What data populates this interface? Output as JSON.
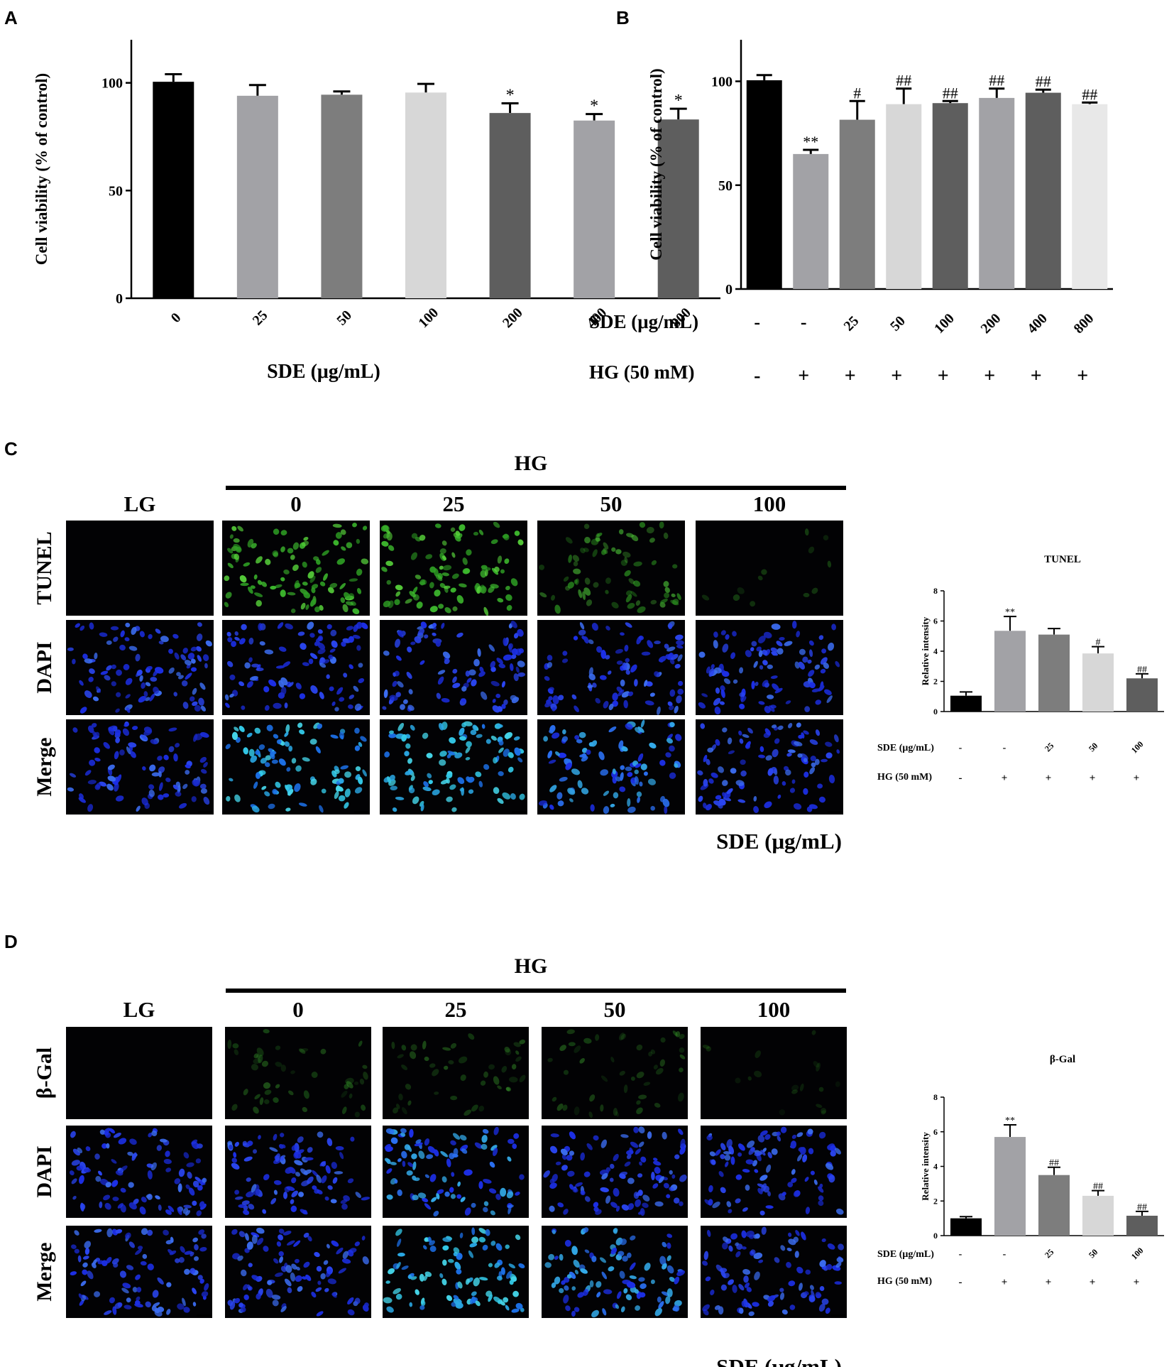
{
  "panels": {
    "A": {
      "letter": "A"
    },
    "B": {
      "letter": "B"
    },
    "C": {
      "letter": "C",
      "group_label": "HG",
      "column_labels": [
        "LG",
        "0",
        "25",
        "50",
        "100"
      ],
      "row_labels": [
        "TUNEL",
        "DAPI",
        "Merge"
      ],
      "footer_label": "SDE (μg/mL)"
    },
    "D": {
      "letter": "D",
      "group_label": "HG",
      "column_labels": [
        "LG",
        "0",
        "25",
        "50",
        "100"
      ],
      "row_labels": [
        "β-Gal",
        "DAPI",
        "Merge"
      ],
      "footer_label": "SDE (μg/mL)"
    }
  },
  "colors": {
    "bar_black": "#000000",
    "bar_mid_gray": "#a2a2a6",
    "bar_gray": "#7d7d7d",
    "bar_light": "#d7d7d7",
    "bar_dark": "#5e5e5e",
    "tunel_green": "#3fbf2f",
    "dapi_blue": "#1c2fe6",
    "merge_cyan": "#33c9e8"
  },
  "chart_data": [
    {
      "id": "A",
      "type": "bar",
      "ylabel": "Cell viability (% of control)",
      "xlabel": "SDE (μg/mL)",
      "yticks": [
        0,
        50,
        100
      ],
      "ylim": [
        0,
        120
      ],
      "categories": [
        "0",
        "25",
        "50",
        "100",
        "200",
        "400",
        "800"
      ],
      "values": [
        100.5,
        94,
        94.5,
        95.5,
        86,
        82.5,
        83
      ],
      "errors": [
        3.5,
        5,
        1.5,
        4,
        4.5,
        3,
        5
      ],
      "annotations": [
        "",
        "",
        "",
        "",
        "*",
        "*",
        "*"
      ],
      "bar_colors": [
        "#000000",
        "#a2a2a6",
        "#7d7d7d",
        "#d7d7d7",
        "#5e5e5e",
        "#a2a2a6",
        "#5e5e5e"
      ]
    },
    {
      "id": "B",
      "type": "bar",
      "ylabel": "Cell viability (% of control)",
      "yticks": [
        0,
        50,
        100
      ],
      "ylim": [
        0,
        120
      ],
      "row_labels": [
        "SDE (μg/mL)",
        "HG (50 mM)"
      ],
      "sde_values": [
        "-",
        "-",
        "25",
        "50",
        "100",
        "200",
        "400",
        "800"
      ],
      "hg_values": [
        "-",
        "+",
        "+",
        "+",
        "+",
        "+",
        "+",
        "+"
      ],
      "values": [
        100.5,
        65,
        81.5,
        89,
        89.5,
        92,
        94.5,
        89
      ],
      "errors": [
        2.5,
        2,
        9,
        7.5,
        1,
        4.5,
        1.5,
        0.8
      ],
      "annotations": [
        "",
        "**",
        "#",
        "##",
        "##",
        "##",
        "##",
        "##"
      ],
      "bar_colors": [
        "#000000",
        "#a2a2a6",
        "#7d7d7d",
        "#d7d7d7",
        "#5e5e5e",
        "#a2a2a6",
        "#5e5e5e",
        "#e8e8e8"
      ]
    },
    {
      "id": "C-TUNEL",
      "type": "bar",
      "title": "TUNEL",
      "ylabel": "Relative intensity",
      "yticks": [
        0,
        2,
        4,
        6,
        8
      ],
      "ylim": [
        0,
        8
      ],
      "row_labels": [
        "SDE (μg/mL)",
        "HG (50 mM)"
      ],
      "sde_values": [
        "-",
        "-",
        "25",
        "50",
        "100"
      ],
      "hg_values": [
        "-",
        "+",
        "+",
        "+",
        "+"
      ],
      "values": [
        1.05,
        5.35,
        5.1,
        3.85,
        2.2
      ],
      "errors": [
        0.25,
        0.95,
        0.4,
        0.45,
        0.3
      ],
      "annotations": [
        "",
        "**",
        "",
        "#",
        "##"
      ],
      "bar_colors": [
        "#000000",
        "#a2a2a6",
        "#7d7d7d",
        "#d7d7d7",
        "#5e5e5e"
      ]
    },
    {
      "id": "D-bGal",
      "type": "bar",
      "title": "β-Gal",
      "ylabel": "Relative intensity",
      "yticks": [
        0,
        2,
        4,
        6,
        8
      ],
      "ylim": [
        0,
        8
      ],
      "row_labels": [
        "SDE (μg/mL)",
        "HG (50 mM)"
      ],
      "sde_values": [
        "-",
        "-",
        "25",
        "50",
        "100"
      ],
      "hg_values": [
        "-",
        "+",
        "+",
        "+",
        "+"
      ],
      "values": [
        1.0,
        5.7,
        3.5,
        2.3,
        1.15
      ],
      "errors": [
        0.1,
        0.7,
        0.45,
        0.3,
        0.25
      ],
      "annotations": [
        "",
        "**",
        "##",
        "##",
        "##"
      ],
      "bar_colors": [
        "#000000",
        "#a2a2a6",
        "#7d7d7d",
        "#d7d7d7",
        "#5e5e5e"
      ]
    }
  ],
  "micrographs": {
    "C": [
      [
        "dark",
        "green-dense",
        "green-dense",
        "green-medium",
        "green-sparse"
      ],
      [
        "blue",
        "blue",
        "blue",
        "blue",
        "blue"
      ],
      [
        "blue",
        "cyan",
        "cyan",
        "blue-cyan",
        "blue"
      ]
    ],
    "D": [
      [
        "dark",
        "green-faint",
        "green-faint",
        "green-faint",
        "green-trace"
      ],
      [
        "blue",
        "blue",
        "blue-cyan",
        "blue",
        "blue"
      ],
      [
        "blue",
        "blue",
        "cyan",
        "blue-cyan",
        "blue"
      ]
    ]
  }
}
